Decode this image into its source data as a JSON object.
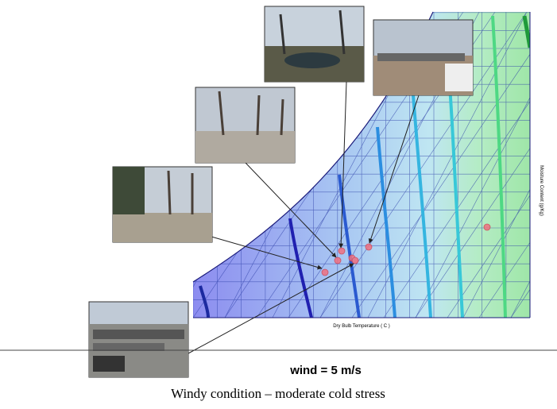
{
  "chart": {
    "x_axis_label": "Dry Bulb Temperature ( C )",
    "y_axis_label": "Moisture Content (g/Kg)"
  },
  "condition": "wind = 5 m/s",
  "caption": "Windy condition – moderate cold stress"
}
